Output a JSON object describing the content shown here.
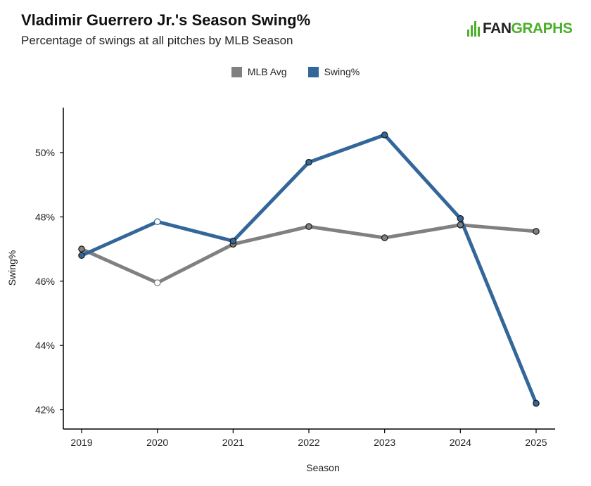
{
  "header": {
    "title": "Vladimir Guerrero Jr.'s Season Swing%",
    "subtitle": "Percentage of swings at all pitches by MLB Season"
  },
  "logo": {
    "part1": "FAN",
    "part2": "GRAPHS",
    "icon": "fangraphs-logo-icon"
  },
  "colors": {
    "mlb_avg": "#808080",
    "swing": "#336699",
    "logo_green": "#4caf2a"
  },
  "chart_data": {
    "type": "line",
    "title": "Vladimir Guerrero Jr.'s Season Swing%",
    "subtitle": "Percentage of swings at all pitches by MLB Season",
    "xlabel": "Season",
    "ylabel": "Swing%",
    "categories": [
      "2019",
      "2020",
      "2021",
      "2022",
      "2023",
      "2024",
      "2025"
    ],
    "ylim": [
      41.4,
      51.4
    ],
    "yticks": [
      42,
      44,
      46,
      48,
      50
    ],
    "ytick_labels": [
      "42%",
      "44%",
      "46%",
      "48%",
      "50%"
    ],
    "grid": false,
    "legend_position": "top-center",
    "series": [
      {
        "name": "MLB Avg",
        "color": "#808080",
        "values": [
          47.0,
          45.95,
          47.15,
          47.7,
          47.35,
          47.75,
          47.55
        ]
      },
      {
        "name": "Swing%",
        "color": "#336699",
        "values": [
          46.8,
          47.85,
          47.25,
          49.7,
          50.55,
          47.95,
          42.2
        ]
      }
    ],
    "hollow_points": {
      "2020": true
    }
  }
}
